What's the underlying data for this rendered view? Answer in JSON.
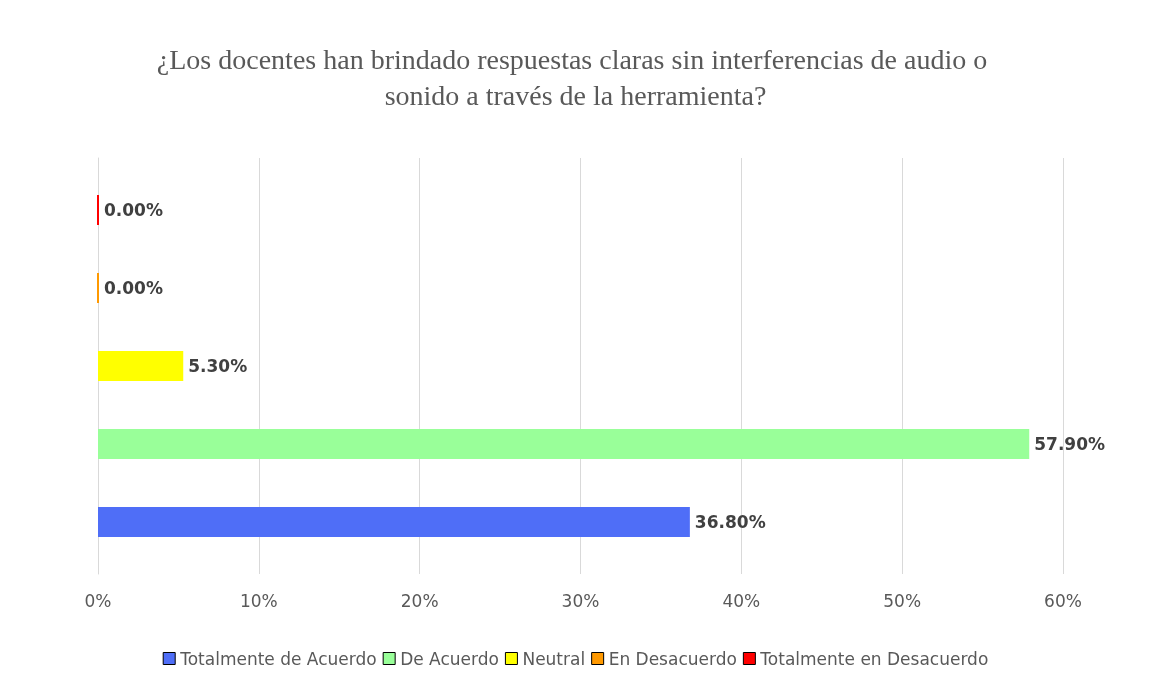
{
  "chart_data": {
    "type": "bar",
    "orientation": "horizontal",
    "title": "¿Los docentes han brindado respuestas claras sin interferencias de audio o sonido a través de la herramienta?",
    "categories": [
      null
    ],
    "series": [
      {
        "name": "Totalmente de Acuerdo",
        "color": "#4f6ef7",
        "values": [
          36.8
        ],
        "value_labels": [
          "36.80%"
        ]
      },
      {
        "name": "De Acuerdo",
        "color": "#99ff99",
        "values": [
          57.9
        ],
        "value_labels": [
          "57.90%"
        ]
      },
      {
        "name": "Neutral",
        "color": "#ffff00",
        "values": [
          5.3
        ],
        "value_labels": [
          "5.30%"
        ]
      },
      {
        "name": "En Desacuerdo",
        "color": "#ff9900",
        "values": [
          0
        ],
        "value_labels": [
          "0.00%"
        ]
      },
      {
        "name": "Totalmente en Desacuerdo",
        "color": "#ff0000",
        "values": [
          0
        ],
        "value_labels": [
          "0.00%"
        ]
      }
    ],
    "xlim": [
      0,
      60
    ],
    "xticks": [
      {
        "value": 0,
        "label": "0%"
      },
      {
        "value": 10,
        "label": "10%"
      },
      {
        "value": 20,
        "label": "20%"
      },
      {
        "value": 30,
        "label": "30%"
      },
      {
        "value": 40,
        "label": "40%"
      },
      {
        "value": 50,
        "label": "50%"
      },
      {
        "value": 60,
        "label": "60%"
      }
    ],
    "grid": "x",
    "legend": "bottom"
  }
}
